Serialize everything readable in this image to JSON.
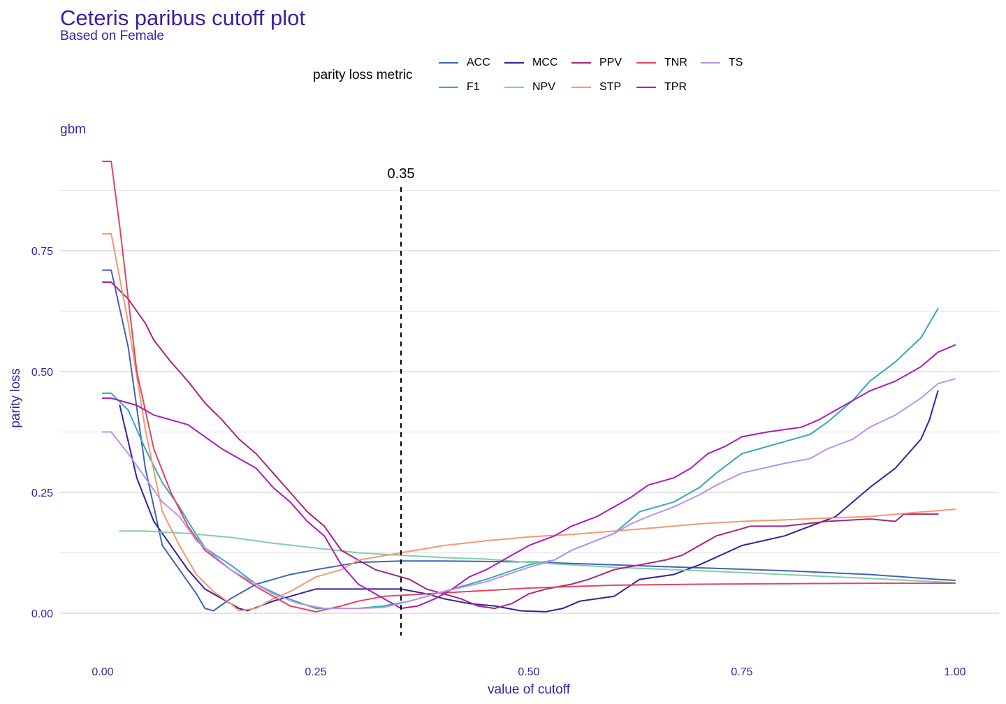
{
  "title": "Ceteris paribus cutoff plot",
  "subtitle": "Based on Female",
  "chart_data": {
    "type": "line",
    "title": "Ceteris paribus cutoff plot",
    "subtitle": "Based on Female",
    "panel": "gbm",
    "xlabel": "value of cutoff",
    "ylabel": "parity loss",
    "xlim": [
      -0.035,
      1.05
    ],
    "ylim": [
      -0.09,
      0.95
    ],
    "x_ticks": [
      0,
      0.25,
      0.5,
      0.75,
      1
    ],
    "x_tick_labels": [
      "0.00",
      "0.25",
      "0.50",
      "0.75",
      "1.00"
    ],
    "y_ticks": [
      0,
      0.25,
      0.5,
      0.75
    ],
    "y_tick_labels": [
      "0.00",
      "0.25",
      "0.50",
      "0.75"
    ],
    "grid": "horizontal",
    "legend_title": "parity loss metric",
    "legend_position": "top",
    "vline": {
      "x": 0.35,
      "label": "0.35",
      "style": "dashed"
    },
    "series": [
      {
        "name": "ACC",
        "color": "#3f64b7",
        "points": [
          [
            0,
            0.71
          ],
          [
            0.01,
            0.71
          ],
          [
            0.03,
            0.55
          ],
          [
            0.05,
            0.3
          ],
          [
            0.07,
            0.14
          ],
          [
            0.09,
            0.09
          ],
          [
            0.11,
            0.04
          ],
          [
            0.12,
            0.01
          ],
          [
            0.13,
            0.005
          ],
          [
            0.15,
            0.03
          ],
          [
            0.18,
            0.06
          ],
          [
            0.2,
            0.07
          ],
          [
            0.22,
            0.08
          ],
          [
            0.25,
            0.09
          ],
          [
            0.3,
            0.105
          ],
          [
            0.35,
            0.108
          ],
          [
            0.4,
            0.108
          ],
          [
            0.5,
            0.106
          ],
          [
            0.55,
            0.103
          ],
          [
            0.6,
            0.1
          ],
          [
            0.7,
            0.094
          ],
          [
            0.8,
            0.088
          ],
          [
            0.9,
            0.08
          ],
          [
            0.98,
            0.07
          ],
          [
            1,
            0.068
          ]
        ]
      },
      {
        "name": "F1",
        "color": "#36a8b6",
        "points": [
          [
            0,
            0.455
          ],
          [
            0.01,
            0.455
          ],
          [
            0.03,
            0.42
          ],
          [
            0.05,
            0.34
          ],
          [
            0.07,
            0.27
          ],
          [
            0.09,
            0.22
          ],
          [
            0.1,
            0.19
          ],
          [
            0.12,
            0.135
          ],
          [
            0.15,
            0.1
          ],
          [
            0.18,
            0.06
          ],
          [
            0.21,
            0.035
          ],
          [
            0.25,
            0.01
          ],
          [
            0.3,
            0.01
          ],
          [
            0.33,
            0.015
          ],
          [
            0.36,
            0.025
          ],
          [
            0.4,
            0.045
          ],
          [
            0.45,
            0.07
          ],
          [
            0.5,
            0.1
          ],
          [
            0.53,
            0.11
          ],
          [
            0.55,
            0.13
          ],
          [
            0.6,
            0.165
          ],
          [
            0.63,
            0.21
          ],
          [
            0.67,
            0.23
          ],
          [
            0.7,
            0.26
          ],
          [
            0.72,
            0.29
          ],
          [
            0.75,
            0.33
          ],
          [
            0.8,
            0.355
          ],
          [
            0.83,
            0.37
          ],
          [
            0.85,
            0.395
          ],
          [
            0.88,
            0.44
          ],
          [
            0.9,
            0.48
          ],
          [
            0.93,
            0.52
          ],
          [
            0.96,
            0.57
          ],
          [
            0.98,
            0.63
          ]
        ]
      },
      {
        "name": "MCC",
        "color": "#371ea3",
        "points": [
          [
            0.02,
            0.43
          ],
          [
            0.04,
            0.28
          ],
          [
            0.06,
            0.19
          ],
          [
            0.08,
            0.14
          ],
          [
            0.1,
            0.09
          ],
          [
            0.12,
            0.05
          ],
          [
            0.14,
            0.03
          ],
          [
            0.16,
            0.01
          ],
          [
            0.17,
            0.005
          ],
          [
            0.2,
            0.025
          ],
          [
            0.22,
            0.035
          ],
          [
            0.25,
            0.05
          ],
          [
            0.3,
            0.05
          ],
          [
            0.35,
            0.05
          ],
          [
            0.38,
            0.04
          ],
          [
            0.4,
            0.03
          ],
          [
            0.43,
            0.02
          ],
          [
            0.46,
            0.015
          ],
          [
            0.49,
            0.005
          ],
          [
            0.52,
            0.003
          ],
          [
            0.54,
            0.01
          ],
          [
            0.56,
            0.025
          ],
          [
            0.6,
            0.035
          ],
          [
            0.63,
            0.07
          ],
          [
            0.67,
            0.08
          ],
          [
            0.7,
            0.1
          ],
          [
            0.75,
            0.14
          ],
          [
            0.8,
            0.16
          ],
          [
            0.83,
            0.18
          ],
          [
            0.86,
            0.2
          ],
          [
            0.88,
            0.23
          ],
          [
            0.9,
            0.26
          ],
          [
            0.93,
            0.3
          ],
          [
            0.96,
            0.36
          ],
          [
            0.97,
            0.4
          ],
          [
            0.98,
            0.46
          ]
        ]
      },
      {
        "name": "NPV",
        "color": "#7ecfa7",
        "points": [
          [
            0.02,
            0.17
          ],
          [
            0.05,
            0.17
          ],
          [
            0.1,
            0.165
          ],
          [
            0.15,
            0.157
          ],
          [
            0.2,
            0.145
          ],
          [
            0.25,
            0.135
          ],
          [
            0.3,
            0.125
          ],
          [
            0.35,
            0.12
          ],
          [
            0.4,
            0.115
          ],
          [
            0.45,
            0.112
          ],
          [
            0.5,
            0.105
          ],
          [
            0.55,
            0.1
          ],
          [
            0.6,
            0.095
          ],
          [
            0.7,
            0.088
          ],
          [
            0.8,
            0.08
          ],
          [
            0.9,
            0.072
          ],
          [
            1,
            0.063
          ]
        ]
      },
      {
        "name": "PPV",
        "color": "#a8247f",
        "points": [
          [
            0,
            0.685
          ],
          [
            0.01,
            0.685
          ],
          [
            0.03,
            0.65
          ],
          [
            0.05,
            0.6
          ],
          [
            0.06,
            0.565
          ],
          [
            0.08,
            0.52
          ],
          [
            0.1,
            0.48
          ],
          [
            0.12,
            0.435
          ],
          [
            0.14,
            0.4
          ],
          [
            0.16,
            0.36
          ],
          [
            0.18,
            0.33
          ],
          [
            0.2,
            0.29
          ],
          [
            0.22,
            0.25
          ],
          [
            0.24,
            0.21
          ],
          [
            0.26,
            0.18
          ],
          [
            0.28,
            0.13
          ],
          [
            0.3,
            0.11
          ],
          [
            0.32,
            0.09
          ],
          [
            0.34,
            0.08
          ],
          [
            0.36,
            0.07
          ],
          [
            0.38,
            0.05
          ],
          [
            0.4,
            0.04
          ],
          [
            0.42,
            0.03
          ],
          [
            0.44,
            0.015
          ],
          [
            0.46,
            0.01
          ],
          [
            0.48,
            0.02
          ],
          [
            0.5,
            0.04
          ],
          [
            0.52,
            0.05
          ],
          [
            0.55,
            0.06
          ],
          [
            0.57,
            0.07
          ],
          [
            0.6,
            0.09
          ],
          [
            0.63,
            0.1
          ],
          [
            0.66,
            0.11
          ],
          [
            0.68,
            0.12
          ],
          [
            0.7,
            0.14
          ],
          [
            0.72,
            0.16
          ],
          [
            0.74,
            0.17
          ],
          [
            0.76,
            0.18
          ],
          [
            0.8,
            0.18
          ],
          [
            0.85,
            0.19
          ],
          [
            0.9,
            0.195
          ],
          [
            0.93,
            0.19
          ],
          [
            0.94,
            0.205
          ],
          [
            0.98,
            0.205
          ]
        ]
      },
      {
        "name": "STP",
        "color": "#f5976f",
        "points": [
          [
            0,
            0.785
          ],
          [
            0.01,
            0.785
          ],
          [
            0.03,
            0.6
          ],
          [
            0.05,
            0.38
          ],
          [
            0.07,
            0.21
          ],
          [
            0.09,
            0.14
          ],
          [
            0.11,
            0.08
          ],
          [
            0.13,
            0.045
          ],
          [
            0.15,
            0.02
          ],
          [
            0.16,
            0.005
          ],
          [
            0.18,
            0.01
          ],
          [
            0.2,
            0.03
          ],
          [
            0.22,
            0.045
          ],
          [
            0.25,
            0.075
          ],
          [
            0.28,
            0.09
          ],
          [
            0.3,
            0.11
          ],
          [
            0.35,
            0.125
          ],
          [
            0.4,
            0.14
          ],
          [
            0.45,
            0.15
          ],
          [
            0.5,
            0.158
          ],
          [
            0.55,
            0.163
          ],
          [
            0.6,
            0.17
          ],
          [
            0.65,
            0.177
          ],
          [
            0.7,
            0.185
          ],
          [
            0.75,
            0.19
          ],
          [
            0.8,
            0.193
          ],
          [
            0.85,
            0.197
          ],
          [
            0.9,
            0.2
          ],
          [
            0.95,
            0.208
          ],
          [
            1,
            0.215
          ]
        ]
      },
      {
        "name": "TNR",
        "color": "#e3445f",
        "points": [
          [
            0,
            0.935
          ],
          [
            0.01,
            0.935
          ],
          [
            0.02,
            0.8
          ],
          [
            0.03,
            0.65
          ],
          [
            0.04,
            0.5
          ],
          [
            0.06,
            0.34
          ],
          [
            0.08,
            0.25
          ],
          [
            0.1,
            0.18
          ],
          [
            0.12,
            0.13
          ],
          [
            0.15,
            0.09
          ],
          [
            0.18,
            0.055
          ],
          [
            0.2,
            0.035
          ],
          [
            0.22,
            0.015
          ],
          [
            0.25,
            0.003
          ],
          [
            0.28,
            0.015
          ],
          [
            0.3,
            0.025
          ],
          [
            0.33,
            0.035
          ],
          [
            0.36,
            0.038
          ],
          [
            0.4,
            0.042
          ],
          [
            0.45,
            0.047
          ],
          [
            0.5,
            0.052
          ],
          [
            0.55,
            0.055
          ],
          [
            0.6,
            0.058
          ],
          [
            0.7,
            0.06
          ],
          [
            0.8,
            0.061
          ],
          [
            0.9,
            0.062
          ],
          [
            1,
            0.062
          ]
        ]
      },
      {
        "name": "TPR",
        "color": "#ac1bbd",
        "points": [
          [
            0,
            0.445
          ],
          [
            0.01,
            0.445
          ],
          [
            0.04,
            0.43
          ],
          [
            0.06,
            0.41
          ],
          [
            0.08,
            0.4
          ],
          [
            0.1,
            0.39
          ],
          [
            0.12,
            0.365
          ],
          [
            0.14,
            0.34
          ],
          [
            0.16,
            0.32
          ],
          [
            0.18,
            0.3
          ],
          [
            0.2,
            0.26
          ],
          [
            0.22,
            0.23
          ],
          [
            0.24,
            0.19
          ],
          [
            0.26,
            0.16
          ],
          [
            0.27,
            0.13
          ],
          [
            0.28,
            0.1
          ],
          [
            0.3,
            0.06
          ],
          [
            0.33,
            0.03
          ],
          [
            0.35,
            0.01
          ],
          [
            0.37,
            0.015
          ],
          [
            0.39,
            0.03
          ],
          [
            0.41,
            0.05
          ],
          [
            0.43,
            0.075
          ],
          [
            0.45,
            0.09
          ],
          [
            0.47,
            0.11
          ],
          [
            0.5,
            0.14
          ],
          [
            0.53,
            0.16
          ],
          [
            0.55,
            0.18
          ],
          [
            0.58,
            0.2
          ],
          [
            0.6,
            0.22
          ],
          [
            0.62,
            0.24
          ],
          [
            0.64,
            0.265
          ],
          [
            0.67,
            0.28
          ],
          [
            0.69,
            0.3
          ],
          [
            0.71,
            0.33
          ],
          [
            0.73,
            0.345
          ],
          [
            0.75,
            0.365
          ],
          [
            0.78,
            0.375
          ],
          [
            0.82,
            0.385
          ],
          [
            0.84,
            0.4
          ],
          [
            0.86,
            0.42
          ],
          [
            0.88,
            0.44
          ],
          [
            0.9,
            0.46
          ],
          [
            0.93,
            0.48
          ],
          [
            0.96,
            0.51
          ],
          [
            0.98,
            0.54
          ],
          [
            1,
            0.555
          ]
        ]
      },
      {
        "name": "TS",
        "color": "#b892f0",
        "points": [
          [
            0,
            0.375
          ],
          [
            0.01,
            0.375
          ],
          [
            0.03,
            0.33
          ],
          [
            0.05,
            0.28
          ],
          [
            0.07,
            0.23
          ],
          [
            0.09,
            0.2
          ],
          [
            0.11,
            0.15
          ],
          [
            0.13,
            0.12
          ],
          [
            0.15,
            0.09
          ],
          [
            0.18,
            0.06
          ],
          [
            0.2,
            0.04
          ],
          [
            0.23,
            0.02
          ],
          [
            0.26,
            0.01
          ],
          [
            0.3,
            0.01
          ],
          [
            0.33,
            0.012
          ],
          [
            0.36,
            0.025
          ],
          [
            0.4,
            0.045
          ],
          [
            0.45,
            0.065
          ],
          [
            0.5,
            0.095
          ],
          [
            0.53,
            0.11
          ],
          [
            0.55,
            0.13
          ],
          [
            0.6,
            0.165
          ],
          [
            0.62,
            0.185
          ],
          [
            0.64,
            0.2
          ],
          [
            0.67,
            0.22
          ],
          [
            0.7,
            0.245
          ],
          [
            0.72,
            0.265
          ],
          [
            0.75,
            0.29
          ],
          [
            0.8,
            0.31
          ],
          [
            0.83,
            0.32
          ],
          [
            0.85,
            0.34
          ],
          [
            0.88,
            0.36
          ],
          [
            0.9,
            0.385
          ],
          [
            0.93,
            0.41
          ],
          [
            0.96,
            0.445
          ],
          [
            0.98,
            0.475
          ],
          [
            1,
            0.485
          ]
        ]
      }
    ]
  }
}
